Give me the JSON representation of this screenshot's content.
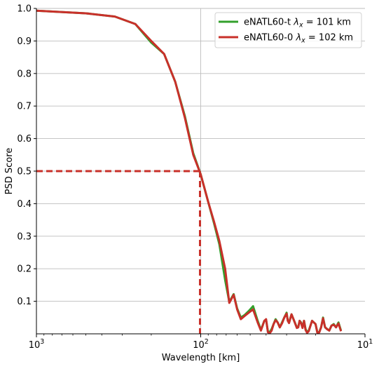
{
  "chart_data": {
    "type": "line",
    "xlabel": "Wavelength [km]",
    "ylabel": "PSD Score",
    "xscale": "log",
    "x_inverted": true,
    "xlim": [
      1000,
      10
    ],
    "ylim": [
      0,
      1.0
    ],
    "grid": "horizontal and vertical at 10^2",
    "legend_position": "top-right",
    "x_ticks": [
      {
        "value": 1000,
        "base": "10",
        "exp": "3"
      },
      {
        "value": 100,
        "base": "10",
        "exp": "2"
      },
      {
        "value": 10,
        "base": "10",
        "exp": "1"
      }
    ],
    "y_ticks": [
      "0.1",
      "0.2",
      "0.3",
      "0.4",
      "0.5",
      "0.6",
      "0.7",
      "0.8",
      "0.9",
      "1.0"
    ],
    "threshold": {
      "y": 0.5,
      "x": 101,
      "color": "#c8302a",
      "style": "dashed"
    },
    "series": [
      {
        "name": "eNATL60-t  λx = 101 km",
        "legend_main": "eNATL60-t  ",
        "legend_lambda": "λ",
        "legend_sub": "x",
        "legend_rest": " = 101 km",
        "color": "#33a02c",
        "points": [
          [
            1000,
            0.993
          ],
          [
            500,
            0.985
          ],
          [
            333,
            0.975
          ],
          [
            250,
            0.952
          ],
          [
            200,
            0.895
          ],
          [
            167,
            0.86
          ],
          [
            143,
            0.775
          ],
          [
            125,
            0.67
          ],
          [
            111,
            0.555
          ],
          [
            100,
            0.49
          ],
          [
            90,
            0.405
          ],
          [
            83,
            0.34
          ],
          [
            77,
            0.275
          ],
          [
            71,
            0.165
          ],
          [
            67,
            0.098
          ],
          [
            63,
            0.122
          ],
          [
            60,
            0.078
          ],
          [
            57,
            0.05
          ],
          [
            54,
            0.058
          ],
          [
            51,
            0.07
          ],
          [
            48,
            0.085
          ],
          [
            45,
            0.04
          ],
          [
            43,
            0.012
          ],
          [
            41,
            0.04
          ],
          [
            40,
            0.043
          ],
          [
            39,
            0.008
          ],
          [
            38,
            0.005
          ],
          [
            37,
            0.015
          ],
          [
            36,
            0.03
          ],
          [
            35,
            0.045
          ],
          [
            34,
            0.035
          ],
          [
            33,
            0.02
          ],
          [
            32,
            0.035
          ],
          [
            31,
            0.05
          ],
          [
            30,
            0.065
          ],
          [
            29.5,
            0.04
          ],
          [
            29,
            0.035
          ],
          [
            28,
            0.06
          ],
          [
            27,
            0.04
          ],
          [
            26,
            0.02
          ],
          [
            25.5,
            0.02
          ],
          [
            25,
            0.04
          ],
          [
            24.5,
            0.035
          ],
          [
            24,
            0.02
          ],
          [
            23.5,
            0.04
          ],
          [
            23,
            0.015
          ],
          [
            22.5,
            0.005
          ],
          [
            22,
            0.01
          ],
          [
            21,
            0.04
          ],
          [
            20,
            0.03
          ],
          [
            19.5,
            0.005
          ],
          [
            19,
            0.005
          ],
          [
            18.5,
            0.02
          ],
          [
            18,
            0.05
          ],
          [
            17.5,
            0.02
          ],
          [
            17,
            0.015
          ],
          [
            16.5,
            0.01
          ],
          [
            16,
            0.025
          ],
          [
            15.5,
            0.03
          ],
          [
            15,
            0.02
          ],
          [
            14.5,
            0.035
          ],
          [
            14,
            0.01
          ]
        ]
      },
      {
        "name": "eNATL60-0  λx = 102 km",
        "legend_main": "eNATL60-0  ",
        "legend_lambda": "λ",
        "legend_sub": "x",
        "legend_rest": " = 102 km",
        "color": "#c8302a",
        "points": [
          [
            1000,
            0.993
          ],
          [
            500,
            0.985
          ],
          [
            333,
            0.975
          ],
          [
            250,
            0.952
          ],
          [
            200,
            0.9
          ],
          [
            167,
            0.86
          ],
          [
            143,
            0.775
          ],
          [
            125,
            0.665
          ],
          [
            111,
            0.55
          ],
          [
            100,
            0.49
          ],
          [
            90,
            0.405
          ],
          [
            83,
            0.345
          ],
          [
            77,
            0.285
          ],
          [
            71,
            0.2
          ],
          [
            67,
            0.095
          ],
          [
            63,
            0.12
          ],
          [
            60,
            0.075
          ],
          [
            57,
            0.045
          ],
          [
            54,
            0.055
          ],
          [
            51,
            0.065
          ],
          [
            48,
            0.075
          ],
          [
            45,
            0.035
          ],
          [
            43,
            0.01
          ],
          [
            41,
            0.04
          ],
          [
            40,
            0.045
          ],
          [
            39,
            0.005
          ],
          [
            38,
            0.002
          ],
          [
            37,
            0.01
          ],
          [
            36,
            0.03
          ],
          [
            35,
            0.042
          ],
          [
            34,
            0.035
          ],
          [
            33,
            0.02
          ],
          [
            32,
            0.032
          ],
          [
            31,
            0.05
          ],
          [
            30,
            0.062
          ],
          [
            29.5,
            0.04
          ],
          [
            29,
            0.033
          ],
          [
            28,
            0.06
          ],
          [
            27,
            0.04
          ],
          [
            26,
            0.018
          ],
          [
            25.5,
            0.02
          ],
          [
            25,
            0.04
          ],
          [
            24.5,
            0.033
          ],
          [
            24,
            0.018
          ],
          [
            23.5,
            0.04
          ],
          [
            23,
            0.012
          ],
          [
            22.5,
            0.003
          ],
          [
            22,
            0.008
          ],
          [
            21,
            0.04
          ],
          [
            20,
            0.03
          ],
          [
            19.5,
            0.003
          ],
          [
            19,
            0.004
          ],
          [
            18.5,
            0.02
          ],
          [
            18,
            0.048
          ],
          [
            17.5,
            0.02
          ],
          [
            17,
            0.014
          ],
          [
            16.5,
            0.01
          ],
          [
            16,
            0.025
          ],
          [
            15.5,
            0.028
          ],
          [
            15,
            0.02
          ],
          [
            14.5,
            0.032
          ],
          [
            14,
            0.008
          ]
        ]
      }
    ]
  }
}
